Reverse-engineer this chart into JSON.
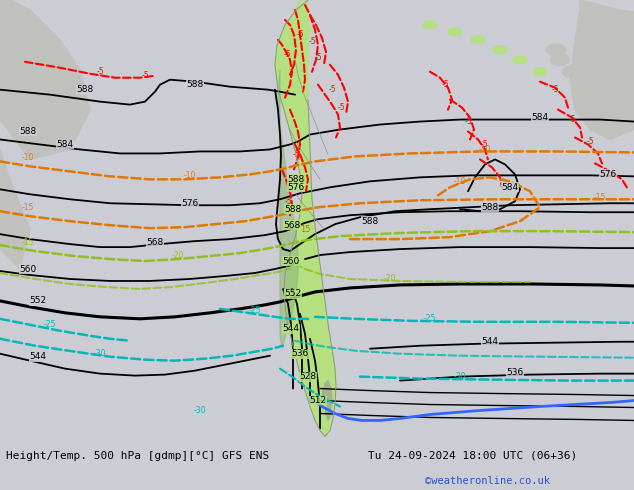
{
  "title_left": "Height/Temp. 500 hPa [gdmp][°C] GFS ENS",
  "title_right": "Tu 24-09-2024 18:00 UTC (06+36)",
  "credit": "©weatheronline.co.uk",
  "bg_color": "#ccccd4",
  "land_color_sa": "#b4e080",
  "land_color_other": "#c0c0bc",
  "title_fontsize": 8.0
}
